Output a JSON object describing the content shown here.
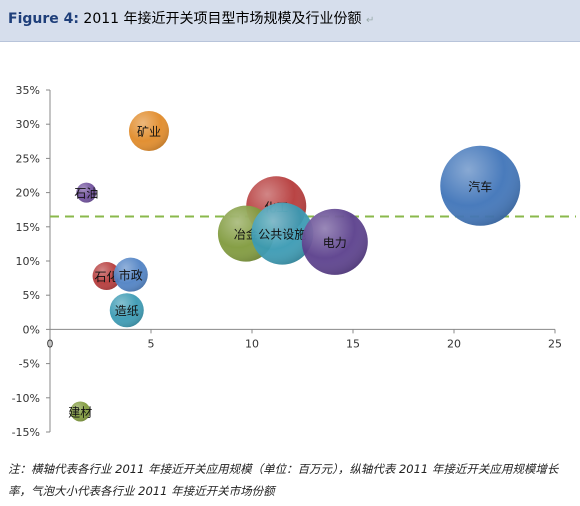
{
  "header": {
    "figure_label": "Figure 4:",
    "title": "2011 年接近开关项目型市场规模及行业份额",
    "mark": "↵"
  },
  "footnote": {
    "text": "注：横轴代表各行业 2011 年接近开关应用规模（单位：百万元），纵轴代表 2011 年接近开关应用规模增长率，气泡大小代表各行业 2011 年接近开关市场份额"
  },
  "chart_data": {
    "type": "bubble",
    "xlim": [
      0,
      25
    ],
    "ylim": [
      -15,
      35
    ],
    "x_ticks": [
      "0",
      "5",
      "10",
      "15",
      "20",
      "25"
    ],
    "y_ticks": [
      "35%",
      "30%",
      "25%",
      "20%",
      "15%",
      "10%",
      "5%",
      "0%",
      "-5%",
      "-10%",
      "-15%"
    ],
    "reference_line_y": 16.5,
    "reference_line_color": "#8ab84b",
    "grid": false,
    "points": [
      {
        "label": "矿业",
        "x": 4.9,
        "y": 29,
        "size": 2.0,
        "color": "#e08a28"
      },
      {
        "label": "石油",
        "x": 1.8,
        "y": 20,
        "size": 1.0,
        "color": "#6f4f9c"
      },
      {
        "label": "化工",
        "x": 11.2,
        "y": 18,
        "size": 3.0,
        "color": "#b53a3a"
      },
      {
        "label": "冶金",
        "x": 9.7,
        "y": 14,
        "size": 2.8,
        "color": "#7f9a3c"
      },
      {
        "label": "公共设施",
        "x": 11.5,
        "y": 14,
        "size": 3.1,
        "color": "#3a9ab3"
      },
      {
        "label": "电力",
        "x": 14.1,
        "y": 12.8,
        "size": 3.3,
        "color": "#5b3f8c"
      },
      {
        "label": "汽车",
        "x": 21.3,
        "y": 21,
        "size": 4.0,
        "color": "#3f74b8"
      },
      {
        "label": "石化",
        "x": 2.8,
        "y": 7.8,
        "size": 1.4,
        "color": "#b53a3a"
      },
      {
        "label": "市政",
        "x": 4.0,
        "y": 8.0,
        "size": 1.7,
        "color": "#4f82c4"
      },
      {
        "label": "造纸",
        "x": 3.8,
        "y": 2.8,
        "size": 1.7,
        "color": "#3a9ab3"
      },
      {
        "label": "建材",
        "x": 1.5,
        "y": -12,
        "size": 1.0,
        "color": "#7f9a3c"
      }
    ]
  }
}
